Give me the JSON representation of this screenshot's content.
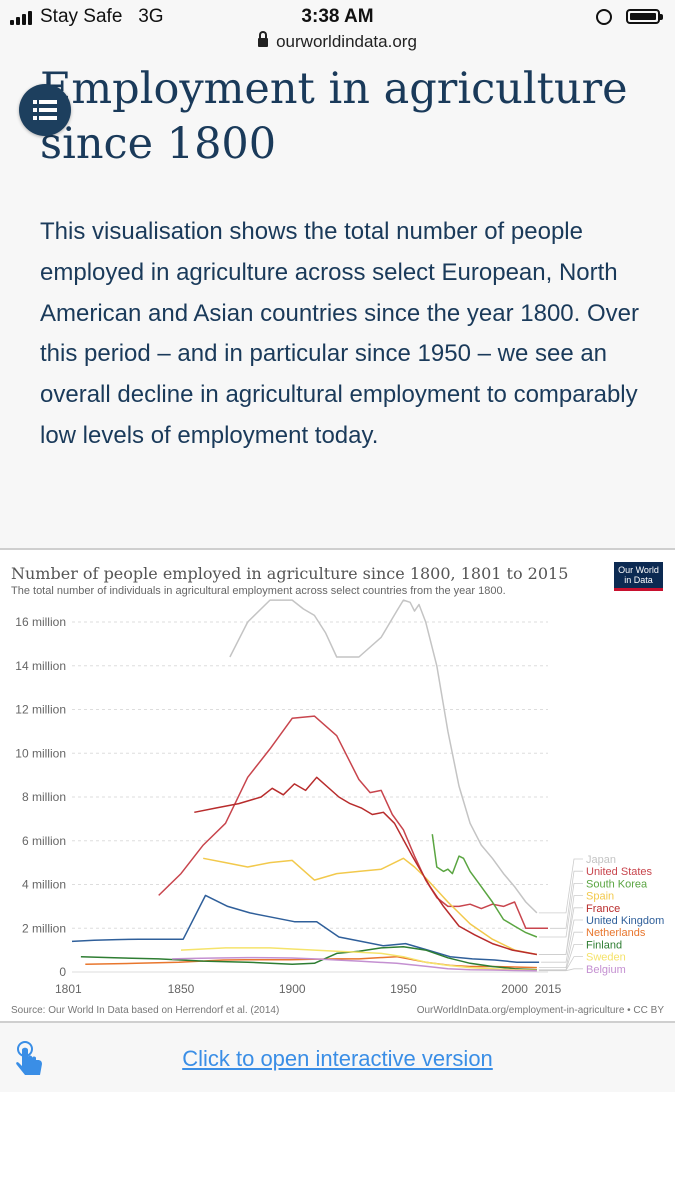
{
  "status": {
    "carrier": "Stay Safe",
    "network": "3G",
    "time": "3:38 AM",
    "url": "ourworldindata.org"
  },
  "article": {
    "title": "Employment in agriculture since 1800",
    "intro": "This visualisation shows the total number of people employed in agriculture across select European, North American and Asian countries since the year 1800. Over this period – and in particular since 1950 – we see an overall decline in agricultural employment to comparably low levels of employment today.",
    "link_text": "Click to open interactive version"
  },
  "icons": {
    "toc": "list-icon",
    "touch": "hand-pointer-icon",
    "lock": "lock-icon"
  },
  "colors": {
    "heading": "#1a3a5a",
    "link": "#3a8ee6",
    "logo_bg": "#0c2a52",
    "logo_accent": "#c8102e"
  },
  "chart": {
    "title": "Number of people employed in agriculture since 1800, 1801 to 2015",
    "subtitle": "The total number of individuals in agricultural employment across select countries from the year 1800.",
    "source": "Source: Our World In Data based on Herrendorf et al. (2014)",
    "credit": "OurWorldInData.org/employment-in-agriculture • CC BY",
    "logo_line1": "Our World",
    "logo_line2": "in Data"
  },
  "chart_data": {
    "type": "line",
    "xlim": [
      1801,
      2015
    ],
    "ylim": [
      0,
      16000000
    ],
    "x_ticks": [
      1801,
      1850,
      1900,
      1950,
      2000,
      2015
    ],
    "y_ticks": [
      0,
      2000000,
      4000000,
      6000000,
      8000000,
      10000000,
      12000000,
      14000000,
      16000000
    ],
    "y_tick_labels": [
      "0",
      "2 million",
      "4 million",
      "6 million",
      "8 million",
      "10 million",
      "12 million",
      "14 million",
      "16 million"
    ],
    "grid": true,
    "legend": "right",
    "series": [
      {
        "name": "Japan",
        "color": "#c4c4c4",
        "x": [
          1872,
          1880,
          1890,
          1900,
          1905,
          1910,
          1915,
          1920,
          1930,
          1940,
          1947,
          1950,
          1953,
          1955,
          1957,
          1960,
          1965,
          1970,
          1975,
          1980,
          1985,
          1990,
          1995,
          2000,
          2005,
          2010
        ],
        "y": [
          14400000,
          16000000,
          17000000,
          17000000,
          16600000,
          16300000,
          15500000,
          14400000,
          14400000,
          15300000,
          16500000,
          17000000,
          16900000,
          16500000,
          16800000,
          16000000,
          14000000,
          11000000,
          8500000,
          6800000,
          5800000,
          5200000,
          4500000,
          3900000,
          3200000,
          2700000
        ]
      },
      {
        "name": "United States",
        "color": "#c8454d",
        "x": [
          1840,
          1850,
          1860,
          1870,
          1880,
          1890,
          1900,
          1910,
          1920,
          1930,
          1935,
          1940,
          1945,
          1950,
          1955,
          1960,
          1965,
          1970,
          1975,
          1980,
          1985,
          1990,
          1995,
          2000,
          2005,
          2010,
          2015
        ],
        "y": [
          3500000,
          4500000,
          5800000,
          6800000,
          8900000,
          10200000,
          11600000,
          11700000,
          10800000,
          8800000,
          8200000,
          8300000,
          7200000,
          6500000,
          5300000,
          4200000,
          3400000,
          3000000,
          3000000,
          3100000,
          2900000,
          3100000,
          3000000,
          3200000,
          2000000,
          2000000,
          2000000
        ]
      },
      {
        "name": "South Korea",
        "color": "#5aa541",
        "x": [
          1963,
          1965,
          1968,
          1970,
          1972,
          1975,
          1977,
          1980,
          1985,
          1990,
          1995,
          2000,
          2005,
          2010
        ],
        "y": [
          6300000,
          4800000,
          4600000,
          4700000,
          4500000,
          5300000,
          5200000,
          4600000,
          3900000,
          3200000,
          2400000,
          2100000,
          1800000,
          1600000
        ]
      },
      {
        "name": "Spain",
        "color": "#f2c94c",
        "x": [
          1860,
          1870,
          1880,
          1890,
          1900,
          1910,
          1920,
          1930,
          1940,
          1950,
          1955,
          1960,
          1970,
          1980,
          1990,
          2000,
          2010
        ],
        "y": [
          5200000,
          5000000,
          4800000,
          5000000,
          5100000,
          4200000,
          4500000,
          4600000,
          4700000,
          5200000,
          4800000,
          4300000,
          3200000,
          2200000,
          1500000,
          1000000,
          800000
        ]
      },
      {
        "name": "France",
        "color": "#b82c2c",
        "x": [
          1856,
          1866,
          1876,
          1886,
          1891,
          1896,
          1901,
          1906,
          1911,
          1921,
          1926,
          1931,
          1936,
          1941,
          1946,
          1954,
          1962,
          1968,
          1975,
          1982,
          1990,
          1999,
          2010
        ],
        "y": [
          7300000,
          7500000,
          7700000,
          8000000,
          8400000,
          8100000,
          8600000,
          8300000,
          8900000,
          8000000,
          7700000,
          7500000,
          7200000,
          7300000,
          6800000,
          5300000,
          3900000,
          3000000,
          2100000,
          1700000,
          1300000,
          1000000,
          800000
        ]
      },
      {
        "name": "United Kingdom",
        "color": "#2f5f9a",
        "x": [
          1801,
          1811,
          1821,
          1831,
          1841,
          1851,
          1861,
          1871,
          1881,
          1891,
          1901,
          1911,
          1921,
          1931,
          1941,
          1951,
          1961,
          1971,
          1981,
          1991,
          2001,
          2011
        ],
        "y": [
          1400000,
          1450000,
          1480000,
          1500000,
          1500000,
          1500000,
          3500000,
          3000000,
          2700000,
          2500000,
          2300000,
          2300000,
          1600000,
          1400000,
          1200000,
          1300000,
          1000000,
          700000,
          600000,
          550000,
          450000,
          450000
        ]
      },
      {
        "name": "Netherlands",
        "color": "#e8762d",
        "x": [
          1807,
          1830,
          1849,
          1859,
          1869,
          1879,
          1889,
          1899,
          1909,
          1920,
          1930,
          1947,
          1960,
          1971,
          1980,
          1990,
          2000,
          2010
        ],
        "y": [
          350000,
          400000,
          450000,
          500000,
          550000,
          560000,
          560000,
          560000,
          580000,
          600000,
          600000,
          700000,
          450000,
          300000,
          250000,
          250000,
          230000,
          200000
        ]
      },
      {
        "name": "Finland",
        "color": "#2e7d32",
        "x": [
          1805,
          1820,
          1840,
          1860,
          1880,
          1890,
          1900,
          1910,
          1920,
          1930,
          1940,
          1950,
          1960,
          1970,
          1980,
          1990,
          2000,
          2010
        ],
        "y": [
          700000,
          650000,
          600000,
          500000,
          450000,
          400000,
          350000,
          400000,
          850000,
          950000,
          1100000,
          1150000,
          1000000,
          650000,
          400000,
          250000,
          150000,
          100000
        ]
      },
      {
        "name": "Sweden",
        "color": "#f5e36b",
        "x": [
          1850,
          1860,
          1870,
          1880,
          1890,
          1900,
          1910,
          1920,
          1930,
          1940,
          1950,
          1960,
          1970,
          1980,
          1990,
          2000,
          2010
        ],
        "y": [
          1000000,
          1050000,
          1100000,
          1100000,
          1100000,
          1050000,
          1000000,
          950000,
          900000,
          850000,
          700000,
          450000,
          300000,
          200000,
          150000,
          100000,
          80000
        ]
      },
      {
        "name": "Belgium",
        "color": "#c490d1",
        "x": [
          1846,
          1856,
          1866,
          1880,
          1890,
          1900,
          1910,
          1920,
          1930,
          1947,
          1961,
          1970,
          1980,
          1990,
          2000,
          2010
        ],
        "y": [
          600000,
          620000,
          640000,
          660000,
          650000,
          640000,
          600000,
          550000,
          500000,
          400000,
          250000,
          150000,
          100000,
          90000,
          70000,
          60000
        ]
      }
    ]
  }
}
